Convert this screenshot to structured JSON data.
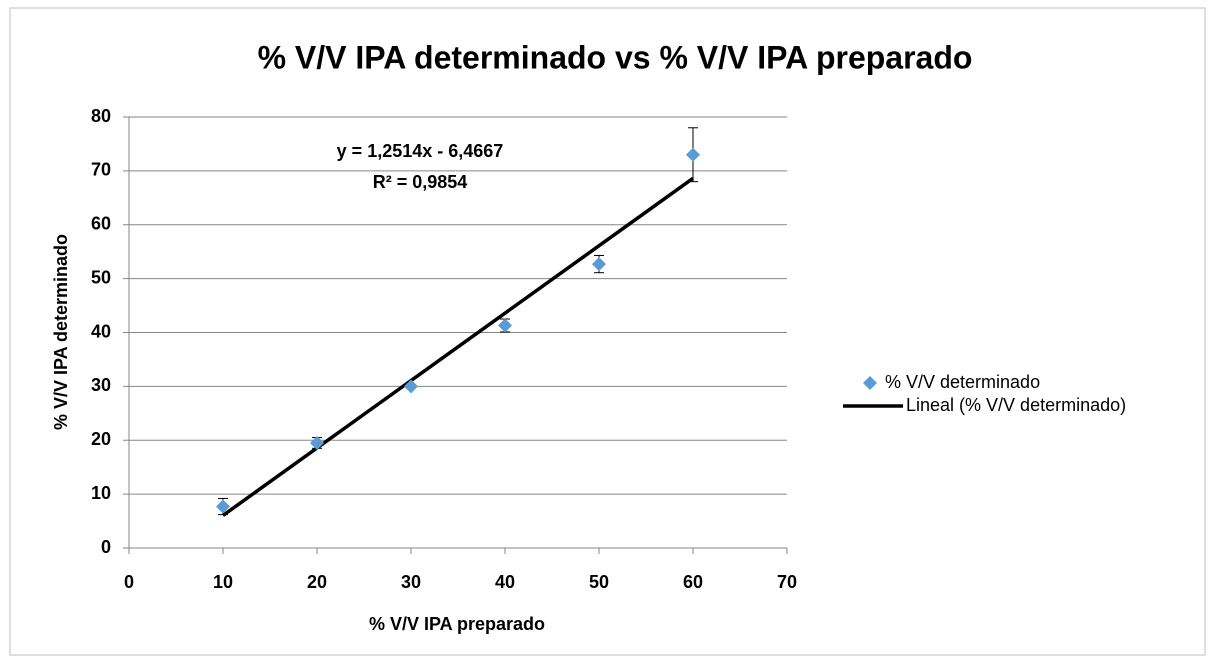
{
  "chart_data": {
    "type": "scatter",
    "title": "% V/V IPA determinado vs % V/V IPA preparado",
    "xlabel": "% V/V IPA preparado",
    "ylabel": "% V/V IPA  determinado",
    "series": [
      {
        "name": "% V/V determinado",
        "color": "#5b9bd5",
        "x": [
          10,
          20,
          30,
          40,
          50,
          60
        ],
        "values": [
          7.7,
          19.5,
          30,
          41.3,
          52.7,
          73
        ],
        "errors": [
          1.5,
          1,
          0.3,
          1.2,
          1.6,
          5
        ]
      }
    ],
    "trendline": {
      "name": "Lineal (% V/V determinado)",
      "color": "#000000",
      "slope": 1.2514,
      "intercept": -6.4667
    },
    "annotations": [
      "y = 1,2514x - 6,4667",
      "R² = 0,9854"
    ],
    "xlim": [
      0,
      70
    ],
    "xticks": [
      0,
      10,
      20,
      30,
      40,
      50,
      60,
      70
    ],
    "ylim": [
      0,
      80
    ],
    "yticks": [
      0,
      10,
      20,
      30,
      40,
      50,
      60,
      70,
      80
    ],
    "grid": true,
    "legend": "right"
  }
}
